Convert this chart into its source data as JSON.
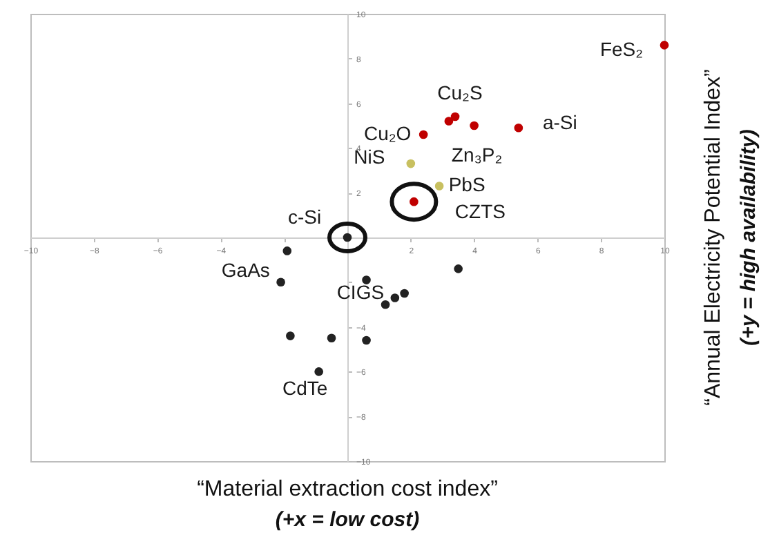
{
  "chart_data": {
    "type": "scatter",
    "xlabel": "“Material extraction cost index”",
    "ylabel": "“Annual Electricity Potential Index”",
    "annotations": [
      "(+x = low cost)",
      "(+y = high availability)",
      {
        "text": "FeS₂",
        "x": 10.0,
        "y": 8.6
      },
      {
        "text": "Cu₂S",
        "x": 3.2,
        "y": 5.2
      },
      {
        "text": "Cu₂O",
        "x": 2.4,
        "y": 4.6
      },
      {
        "text": "Zn₃P₂",
        "x": 4.0,
        "y": 5.0
      },
      {
        "text": "a-Si",
        "x": 5.4,
        "y": 4.9
      },
      {
        "text": "NiS",
        "x": 2.0,
        "y": 3.3
      },
      {
        "text": "PbS",
        "x": 2.9,
        "y": 2.3
      },
      {
        "text": "CZTS",
        "x": 2.1,
        "y": 1.6
      },
      {
        "text": "c-Si",
        "x": 0.0,
        "y": 0.0
      },
      {
        "text": "GaAs",
        "x": -1.9,
        "y": -0.6
      },
      {
        "text": "CIGS",
        "x": 1.5,
        "y": -2.7
      },
      {
        "text": "CdTe",
        "x": -0.9,
        "y": -6.0
      }
    ],
    "series": [
      {
        "color": "#c00000",
        "x": [
          10.0,
          3.2,
          3.4,
          2.4,
          4.0,
          5.4,
          2.1
        ],
        "values": [
          8.6,
          5.2,
          5.4,
          4.6,
          5.0,
          4.9,
          1.6
        ]
      },
      {
        "color": "#c8c060",
        "x": [
          2.0,
          2.9
        ],
        "values": [
          3.3,
          2.3
        ]
      },
      {
        "color": "#222222",
        "x": [
          0.0,
          -1.9,
          -2.1,
          0.6,
          1.8,
          1.5,
          1.2,
          3.5,
          -1.8,
          -0.5,
          0.6,
          -0.9
        ],
        "values": [
          0.0,
          -0.6,
          -2.0,
          -1.9,
          -2.5,
          -2.7,
          -3.0,
          -1.4,
          -4.4,
          -4.5,
          -4.6,
          -6.0
        ]
      }
    ],
    "xlim": [
      -10,
      10
    ],
    "ylim": [
      -10,
      10
    ],
    "xticks": [
      -10,
      -8,
      -6,
      -4,
      {
        "value": -2,
        "label": null
      },
      2,
      4,
      6,
      8,
      10
    ],
    "yticks": [
      -10,
      -8,
      -6,
      -4,
      {
        "value": -2,
        "label": null
      },
      2,
      4,
      6,
      8,
      10
    ],
    "marker": "circle"
  }
}
